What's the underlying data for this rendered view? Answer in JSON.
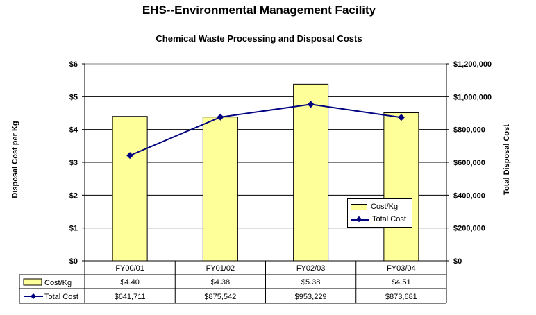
{
  "chart_data": {
    "type": "bar+line",
    "title": "EHS--Environmental Management Facility",
    "subtitle": "Chemical Waste Processing and Disposal Costs",
    "categories": [
      "FY00/01",
      "FY01/02",
      "FY02/03",
      "FY03/04"
    ],
    "ylabel_left": "Disposal Cost per Kg",
    "ylabel_right": "Total Disposal Cost",
    "ylim_left": [
      0,
      6
    ],
    "ylim_right": [
      0,
      1200000
    ],
    "yticks_left": [
      "$0",
      "$1",
      "$2",
      "$3",
      "$4",
      "$5",
      "$6"
    ],
    "yticks_right": [
      "$0",
      "$200,000",
      "$400,000",
      "$600,000",
      "$800,000",
      "$1,000,000",
      "$1,200,000"
    ],
    "grid": true,
    "legend_position": "lower-right",
    "series": [
      {
        "name": "Cost/Kg",
        "type": "bar",
        "axis": "left",
        "color": "#ffff99",
        "values": [
          4.4,
          4.38,
          5.38,
          4.51
        ],
        "table_values": [
          "$4.40",
          "$4.38",
          "$5.38",
          "$4.51"
        ]
      },
      {
        "name": "Total Cost",
        "type": "line",
        "axis": "right",
        "color": "#000080",
        "values": [
          641711,
          875542,
          953229,
          873681
        ],
        "table_values": [
          "$641,711",
          "$875,542",
          "$953,229",
          "$873,681"
        ]
      }
    ]
  }
}
